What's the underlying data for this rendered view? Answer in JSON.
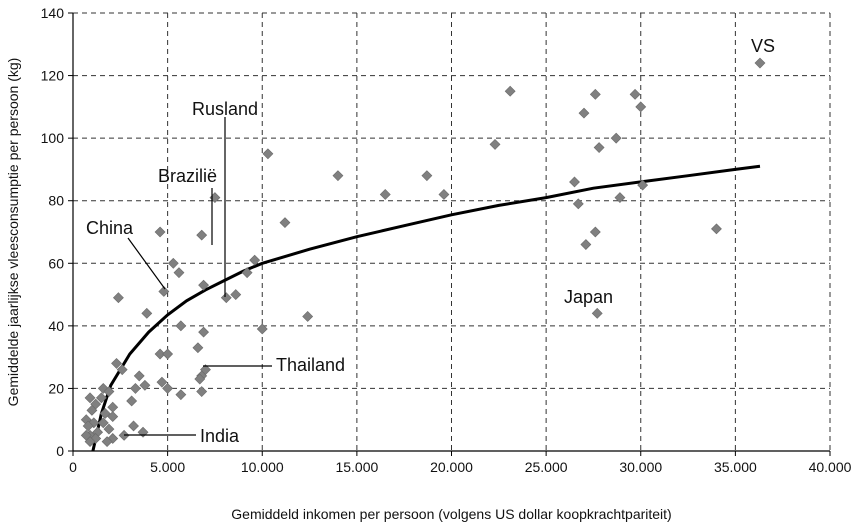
{
  "chart_data": {
    "type": "scatter",
    "xlabel": "Gemiddeld inkomen per persoon (volgens US dollar koopkrachtpariteit)",
    "ylabel": "Gemiddelde jaarlijkse vleesconsumptie per persoon (kg)",
    "xlim": [
      0,
      40000
    ],
    "ylim": [
      0,
      140
    ],
    "x_ticks": [
      0,
      5000,
      10000,
      15000,
      20000,
      25000,
      30000,
      35000,
      40000
    ],
    "x_tick_labels": [
      "0",
      "5.000",
      "10.000",
      "15.000",
      "20.000",
      "25.000",
      "30.000",
      "35.000",
      "40.000"
    ],
    "y_ticks": [
      0,
      20,
      40,
      60,
      80,
      100,
      120,
      140
    ],
    "y_tick_labels": [
      "0",
      "20",
      "40",
      "60",
      "80",
      "100",
      "120",
      "140"
    ],
    "grid": true,
    "marker_color": "#808080",
    "trend_color": "#000000",
    "points": [
      [
        36300,
        124
      ],
      [
        23100,
        115
      ],
      [
        27600,
        114
      ],
      [
        29700,
        114
      ],
      [
        30000,
        110
      ],
      [
        27000,
        108
      ],
      [
        28700,
        100
      ],
      [
        22300,
        98
      ],
      [
        27800,
        97
      ],
      [
        10300,
        95
      ],
      [
        14000,
        88
      ],
      [
        18700,
        88
      ],
      [
        16500,
        82
      ],
      [
        19600,
        82
      ],
      [
        7500,
        81
      ],
      [
        26500,
        86
      ],
      [
        30100,
        85
      ],
      [
        26700,
        79
      ],
      [
        28900,
        81
      ],
      [
        11200,
        73
      ],
      [
        34000,
        71
      ],
      [
        4600,
        70
      ],
      [
        6800,
        69
      ],
      [
        27600,
        70
      ],
      [
        27100,
        66
      ],
      [
        9600,
        61
      ],
      [
        5300,
        60
      ],
      [
        5600,
        57
      ],
      [
        9200,
        57
      ],
      [
        6900,
        53
      ],
      [
        4800,
        51
      ],
      [
        8600,
        50
      ],
      [
        8100,
        49
      ],
      [
        2400,
        49
      ],
      [
        3900,
        44
      ],
      [
        27700,
        44
      ],
      [
        12400,
        43
      ],
      [
        5700,
        40
      ],
      [
        10000,
        39
      ],
      [
        6900,
        38
      ],
      [
        6600,
        33
      ],
      [
        4600,
        31
      ],
      [
        5000,
        31
      ],
      [
        7000,
        26
      ],
      [
        2300,
        28
      ],
      [
        2600,
        26
      ],
      [
        6800,
        24
      ],
      [
        3500,
        24
      ],
      [
        6700,
        23
      ],
      [
        4700,
        22
      ],
      [
        3800,
        21
      ],
      [
        5000,
        20
      ],
      [
        3300,
        20
      ],
      [
        1600,
        20
      ],
      [
        6800,
        19
      ],
      [
        1900,
        19
      ],
      [
        5700,
        18
      ],
      [
        1500,
        17
      ],
      [
        900,
        17
      ],
      [
        3100,
        16
      ],
      [
        1200,
        15
      ],
      [
        2100,
        14
      ],
      [
        1000,
        13
      ],
      [
        1700,
        12
      ],
      [
        2100,
        11
      ],
      [
        700,
        10
      ],
      [
        1600,
        9
      ],
      [
        1100,
        9
      ],
      [
        3200,
        8
      ],
      [
        800,
        8
      ],
      [
        1900,
        7
      ],
      [
        3700,
        6
      ],
      [
        1300,
        6
      ],
      [
        900,
        5
      ],
      [
        700,
        5
      ],
      [
        2700,
        5
      ],
      [
        1200,
        4
      ],
      [
        2100,
        4
      ],
      [
        900,
        3
      ],
      [
        1800,
        3
      ]
    ],
    "trend": [
      [
        1050,
        0
      ],
      [
        1500,
        12
      ],
      [
        2000,
        21
      ],
      [
        3000,
        31
      ],
      [
        4000,
        38
      ],
      [
        5000,
        43.5
      ],
      [
        6000,
        48
      ],
      [
        7000,
        51.5
      ],
      [
        8000,
        54.5
      ],
      [
        9000,
        57.5
      ],
      [
        10000,
        60
      ],
      [
        12500,
        64.5
      ],
      [
        15000,
        68.5
      ],
      [
        17500,
        72
      ],
      [
        20000,
        75.5
      ],
      [
        22500,
        78.5
      ],
      [
        25000,
        81
      ],
      [
        27500,
        84
      ],
      [
        30000,
        86
      ],
      [
        32500,
        88
      ],
      [
        35000,
        90
      ],
      [
        36300,
        91
      ]
    ],
    "annotations": [
      {
        "label": "VS",
        "x": 36300,
        "y": 124
      },
      {
        "label": "Rusland",
        "x": 8100,
        "y": 49
      },
      {
        "label": "Brazilië",
        "x": 7500,
        "y": 81
      },
      {
        "label": "China",
        "x": 4800,
        "y": 51
      },
      {
        "label": "Japan",
        "x": 27700,
        "y": 44
      },
      {
        "label": "Thailand",
        "x": 7000,
        "y": 26
      },
      {
        "label": "India",
        "x": 2700,
        "y": 5
      }
    ]
  }
}
